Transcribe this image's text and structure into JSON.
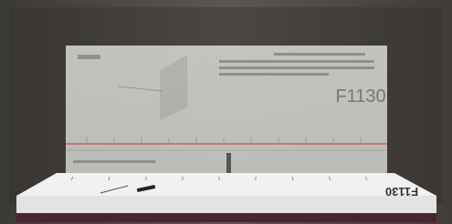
{
  "panel": {
    "label": "F1130"
  },
  "base": {
    "label": "F1130"
  }
}
